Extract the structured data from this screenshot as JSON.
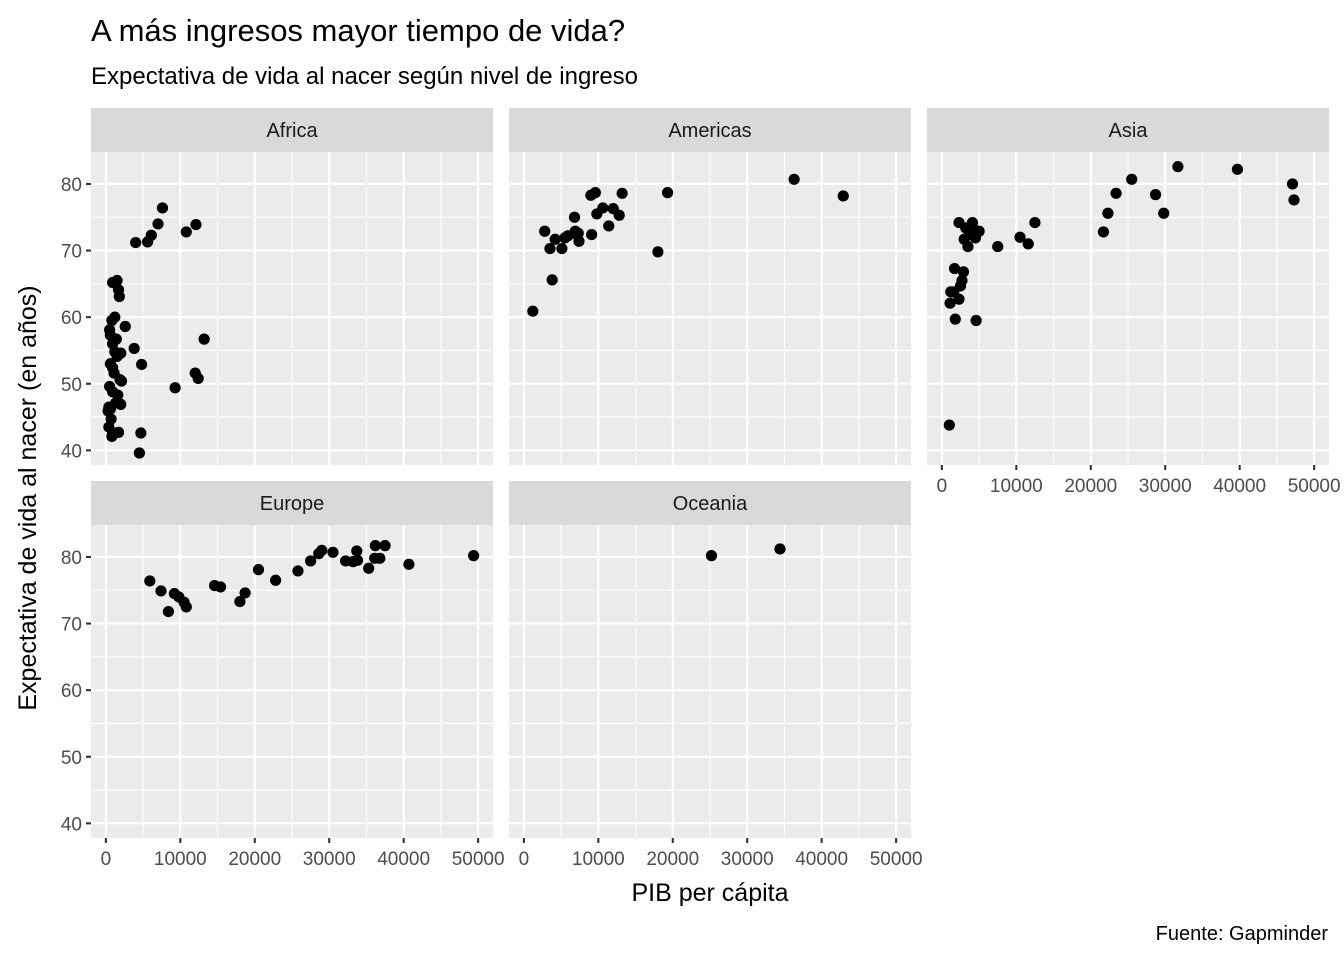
{
  "chart_data": {
    "type": "scatter",
    "title": "A más ingresos mayor tiempo de vida?",
    "subtitle": "Expectativa de vida al nacer según nivel de ingreso",
    "xlabel": "PIB per cápita",
    "ylabel": "Expectativa de vida al nacer (en años)",
    "caption": "Fuente: Gapminder",
    "xlim": [
      -2000,
      52000
    ],
    "ylim": [
      37.8,
      84.8
    ],
    "x_ticks": [
      0,
      10000,
      20000,
      30000,
      40000,
      50000
    ],
    "x_tick_labels": [
      "0",
      "10000",
      "20000",
      "30000",
      "40000",
      "50000"
    ],
    "y_ticks": [
      40,
      50,
      60,
      70,
      80
    ],
    "y_tick_labels": [
      "40",
      "50",
      "60",
      "70",
      "80"
    ],
    "grid": true,
    "facets": [
      {
        "name": "Africa",
        "points": [
          [
            12100,
            73.9
          ],
          [
            7600,
            76.4
          ],
          [
            7000,
            74.0
          ],
          [
            10800,
            72.8
          ],
          [
            6100,
            72.3
          ],
          [
            5600,
            71.3
          ],
          [
            4000,
            71.2
          ],
          [
            13200,
            56.7
          ],
          [
            12000,
            51.6
          ],
          [
            12400,
            50.8
          ],
          [
            9300,
            49.4
          ],
          [
            4800,
            52.9
          ],
          [
            4700,
            42.6
          ],
          [
            4500,
            39.6
          ],
          [
            3800,
            55.3
          ],
          [
            2600,
            58.6
          ],
          [
            1500,
            65.5
          ],
          [
            900,
            65.2
          ],
          [
            1700,
            64.1
          ],
          [
            1800,
            63.1
          ],
          [
            1200,
            60.0
          ],
          [
            800,
            59.5
          ],
          [
            500,
            58.1
          ],
          [
            600,
            57.3
          ],
          [
            1400,
            56.7
          ],
          [
            900,
            56.0
          ],
          [
            1200,
            54.8
          ],
          [
            2000,
            54.6
          ],
          [
            1500,
            54.1
          ],
          [
            600,
            53.0
          ],
          [
            900,
            52.4
          ],
          [
            1100,
            51.6
          ],
          [
            1900,
            50.6
          ],
          [
            2100,
            50.4
          ],
          [
            500,
            49.6
          ],
          [
            900,
            48.8
          ],
          [
            1600,
            48.3
          ],
          [
            400,
            46.5
          ],
          [
            1300,
            47.1
          ],
          [
            2000,
            46.9
          ],
          [
            300,
            45.9
          ],
          [
            600,
            46.2
          ],
          [
            700,
            44.7
          ],
          [
            400,
            43.5
          ],
          [
            900,
            42.6
          ],
          [
            1700,
            42.7
          ],
          [
            800,
            42.1
          ]
        ]
      },
      {
        "name": "Americas",
        "points": [
          [
            1200,
            60.9
          ],
          [
            3800,
            65.6
          ],
          [
            2800,
            72.9
          ],
          [
            3500,
            70.3
          ],
          [
            4200,
            71.7
          ],
          [
            5100,
            70.3
          ],
          [
            5900,
            72.2
          ],
          [
            5500,
            71.9
          ],
          [
            6900,
            72.9
          ],
          [
            7000,
            72.5
          ],
          [
            7400,
            71.4
          ],
          [
            7300,
            72.6
          ],
          [
            6800,
            75.0
          ],
          [
            9000,
            78.3
          ],
          [
            9600,
            78.7
          ],
          [
            9100,
            72.4
          ],
          [
            9800,
            75.5
          ],
          [
            10600,
            76.4
          ],
          [
            11400,
            73.7
          ],
          [
            12000,
            76.3
          ],
          [
            12800,
            75.3
          ],
          [
            13200,
            78.6
          ],
          [
            18000,
            69.8
          ],
          [
            19300,
            78.7
          ],
          [
            36300,
            80.7
          ],
          [
            42900,
            78.2
          ]
        ]
      },
      {
        "name": "Asia",
        "points": [
          [
            1000,
            43.8
          ],
          [
            1100,
            62.1
          ],
          [
            1200,
            63.8
          ],
          [
            1600,
            63.8
          ],
          [
            1700,
            67.3
          ],
          [
            1800,
            59.7
          ],
          [
            2300,
            62.7
          ],
          [
            2300,
            74.2
          ],
          [
            2500,
            64.7
          ],
          [
            2700,
            65.5
          ],
          [
            2900,
            66.8
          ],
          [
            3000,
            71.7
          ],
          [
            3200,
            73.4
          ],
          [
            3500,
            70.6
          ],
          [
            3700,
            72.9
          ],
          [
            4000,
            72.4
          ],
          [
            4100,
            74.2
          ],
          [
            4300,
            73.2
          ],
          [
            4600,
            59.5
          ],
          [
            4500,
            71.9
          ],
          [
            5000,
            72.9
          ],
          [
            7500,
            70.6
          ],
          [
            10500,
            72.0
          ],
          [
            11600,
            71.0
          ],
          [
            12500,
            74.2
          ],
          [
            21700,
            72.8
          ],
          [
            22300,
            75.6
          ],
          [
            23400,
            78.6
          ],
          [
            25500,
            80.7
          ],
          [
            28700,
            78.4
          ],
          [
            29800,
            75.6
          ],
          [
            31700,
            82.6
          ],
          [
            39700,
            82.2
          ],
          [
            47100,
            80.0
          ],
          [
            47300,
            77.6
          ]
        ]
      },
      {
        "name": "Europe",
        "points": [
          [
            5900,
            76.4
          ],
          [
            7400,
            74.9
          ],
          [
            8400,
            71.8
          ],
          [
            9200,
            74.5
          ],
          [
            9800,
            74.0
          ],
          [
            10500,
            73.2
          ],
          [
            10800,
            72.5
          ],
          [
            14600,
            75.7
          ],
          [
            15400,
            75.5
          ],
          [
            18000,
            73.3
          ],
          [
            18700,
            74.6
          ],
          [
            20500,
            78.1
          ],
          [
            22800,
            76.5
          ],
          [
            25800,
            77.9
          ],
          [
            27500,
            79.4
          ],
          [
            28600,
            80.5
          ],
          [
            29000,
            81.0
          ],
          [
            30500,
            80.7
          ],
          [
            32200,
            79.4
          ],
          [
            33200,
            79.3
          ],
          [
            33700,
            80.9
          ],
          [
            33800,
            79.5
          ],
          [
            35300,
            78.3
          ],
          [
            36100,
            79.8
          ],
          [
            36200,
            81.7
          ],
          [
            36800,
            79.8
          ],
          [
            37500,
            81.7
          ],
          [
            40700,
            78.9
          ],
          [
            49400,
            80.2
          ]
        ]
      },
      {
        "name": "Oceania",
        "points": [
          [
            25200,
            80.2
          ],
          [
            34400,
            81.2
          ]
        ]
      }
    ]
  }
}
